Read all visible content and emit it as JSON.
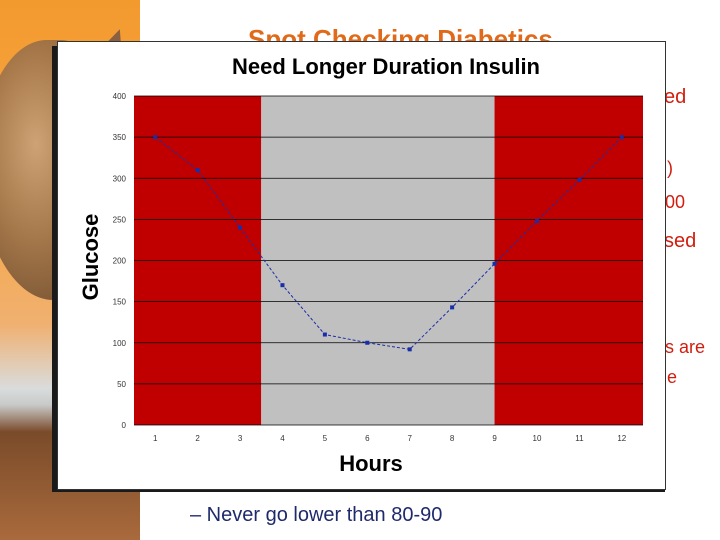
{
  "slide": {
    "title": "Spot Checking Diabetics",
    "partial_lines": [
      "ed",
      ")",
      "00",
      "sed",
      "s are",
      "e"
    ],
    "bottom_bullet": "– Never go lower than 80-90"
  },
  "chart_data": {
    "type": "line",
    "title": "Need Longer Duration Insulin",
    "xlabel": "Hours",
    "ylabel": "Glucose",
    "x": [
      1,
      2,
      3,
      4,
      5,
      6,
      7,
      8,
      9,
      10,
      11,
      12
    ],
    "y": [
      350,
      310,
      240,
      170,
      110,
      100,
      92,
      143,
      196,
      248,
      298,
      350
    ],
    "ylim": [
      0,
      400
    ],
    "yticks": [
      0,
      50,
      100,
      150,
      200,
      250,
      300,
      350,
      400
    ],
    "xticks": [
      1,
      2,
      3,
      4,
      5,
      6,
      7,
      8,
      9,
      10,
      11,
      12
    ],
    "grid": true,
    "bands": [
      {
        "from": 0.5,
        "to": 3.5,
        "color": "#c00000"
      },
      {
        "from": 3.5,
        "to": 9.0,
        "color": "#c0c0c0"
      },
      {
        "from": 9.0,
        "to": 12.5,
        "color": "#c00000"
      }
    ],
    "line_color": "#1a2ea8"
  }
}
